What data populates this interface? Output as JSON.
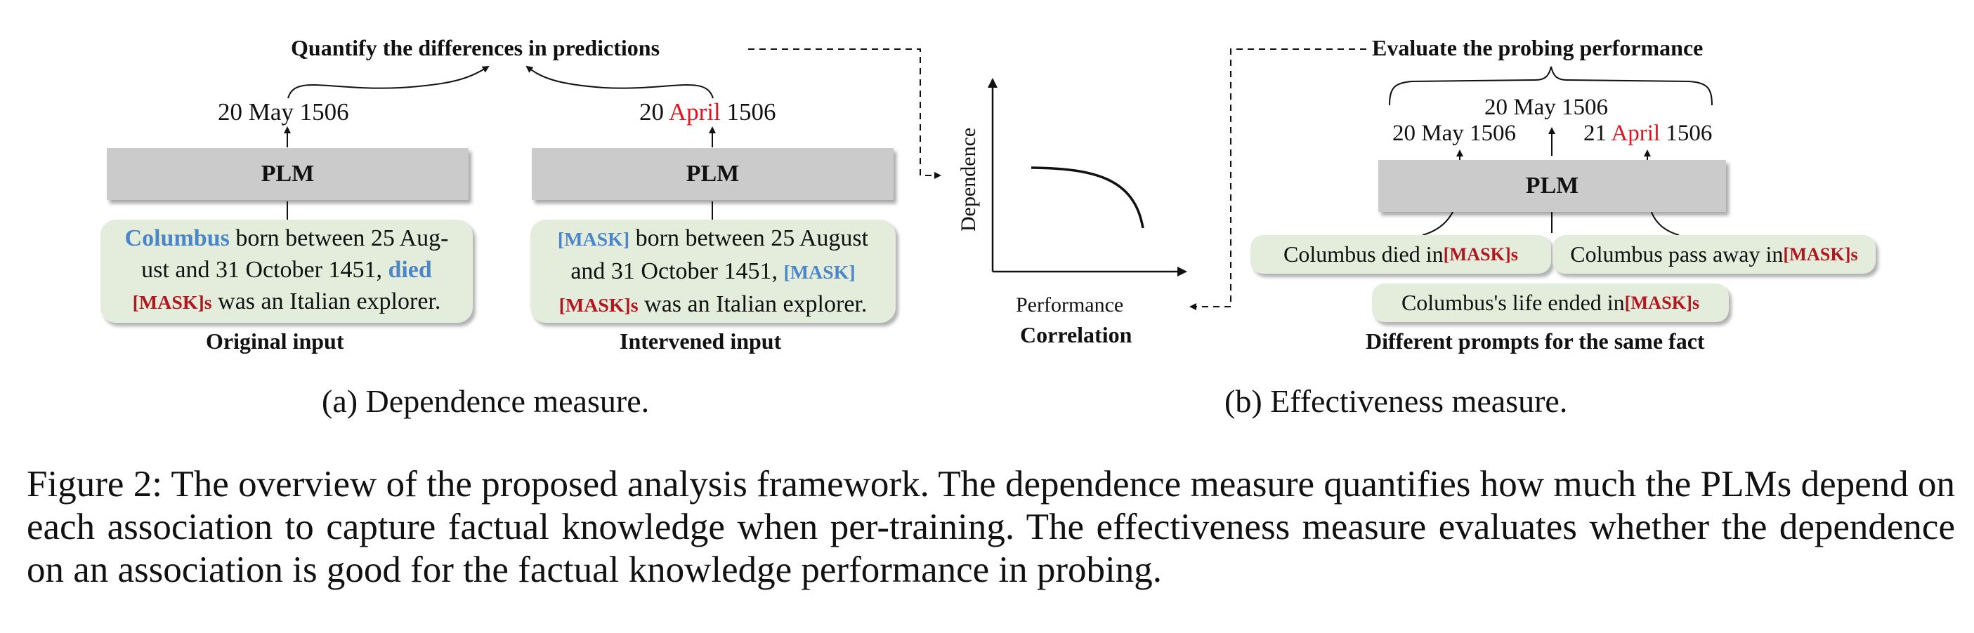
{
  "left": {
    "top_label": "Quantify the differences in predictions",
    "orig_prediction": "20 May 1506",
    "interv_prediction": {
      "pre": "20 ",
      "red": "April",
      "post": " 1506"
    },
    "plm": "PLM",
    "orig_input": {
      "w1": "Columbus",
      "t1": " born between 25 Aug-",
      "t2": "ust and 31 October 1451, ",
      "w2": "died",
      "mask": "[MASK]s",
      "t3": " was an Italian explorer."
    },
    "interv_input": {
      "m1": "[MASK]",
      "t1": " born between 25 August",
      "t2": "and 31 October 1451, ",
      "m2": "[MASK]",
      "mask": "[MASK]s",
      "t3": " was an Italian explorer."
    },
    "orig_caption": "Original input",
    "interv_caption": "Intervened input",
    "subcaption": "(a) Dependence measure."
  },
  "middle": {
    "ylabel": "Dependence",
    "xlabel": "Performance",
    "caption": "Correlation"
  },
  "right": {
    "top_label": "Evaluate the probing performance",
    "center_pred": "20 May 1506",
    "left_pred": "20 May 1506",
    "right_pred": {
      "pre": "21 ",
      "red": "April",
      "post": " 1506"
    },
    "plm": "PLM",
    "prompt1": {
      "text": "Columbus died in ",
      "mask": "[MASK]s"
    },
    "prompt2": {
      "text": "Columbus pass away in ",
      "mask": "[MASK]s"
    },
    "prompt3": {
      "text": "Columbus's life ended in ",
      "mask": "[MASK]s"
    },
    "caption": "Different prompts for the same fact",
    "subcaption": "(b) Effectiveness measure."
  },
  "figure_caption": "Figure 2: The overview of the proposed analysis framework. The dependence measure quantifies how much the PLMs depend on each association to capture factual knowledge when per-training. The effectiveness measure evaluates whether the dependence on an association is good for the factual knowledge performance in probing."
}
